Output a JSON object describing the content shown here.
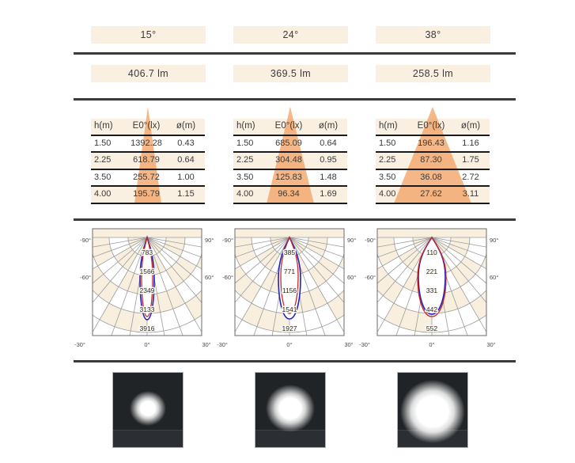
{
  "colors": {
    "box_beige": "#faf0e2",
    "cone_orange": "#f2a365",
    "rule_dark": "#3b3b3b",
    "text": "#3a3a3a"
  },
  "polar_shared": {
    "angle_labels": [
      "-90°",
      "90°",
      "-60°",
      "60°",
      "-30°",
      "0°",
      "30°"
    ],
    "grid_color": "#9b9b9b",
    "beige": "#f9efdf",
    "blue": "#2323b8",
    "red": "#cc2626"
  },
  "columns": [
    {
      "angle_label": "15°",
      "lumen_label": "406.7 lm",
      "table": {
        "headers": [
          "h(m)",
          "E0°(lx)",
          "ø(m)"
        ],
        "rows": [
          [
            "1.50",
            "1392.28",
            "0.43"
          ],
          [
            "2.25",
            "618.79",
            "0.64"
          ],
          [
            "3.50",
            "255.72",
            "1.00"
          ],
          [
            "4.00",
            "195.79",
            "1.15"
          ]
        ]
      },
      "polar": {
        "ring_labels": [
          "783",
          "1566",
          "2349",
          "3133",
          "3916"
        ],
        "lobe": {
          "blue_halfwidth": 9,
          "blue_length": 104,
          "red_halfwidth": 7,
          "red_length": 100
        }
      }
    },
    {
      "angle_label": "24°",
      "lumen_label": "369.5 lm",
      "table": {
        "headers": [
          "h(m)",
          "E0°(lx)",
          "ø(m)"
        ],
        "rows": [
          [
            "1.50",
            "685.09",
            "0.64"
          ],
          [
            "2.25",
            "304.48",
            "0.95"
          ],
          [
            "3.50",
            "125.83",
            "1.48"
          ],
          [
            "4.00",
            "96.34",
            "1.69"
          ]
        ]
      },
      "polar": {
        "ring_labels": [
          "385",
          "771",
          "1156",
          "1541",
          "1927"
        ],
        "lobe": {
          "blue_halfwidth": 14,
          "blue_length": 103,
          "red_halfwidth": 11,
          "red_length": 96
        }
      }
    },
    {
      "angle_label": "38°",
      "lumen_label": "258.5 lm",
      "table": {
        "headers": [
          "h(m)",
          "E0°(lx)",
          "ø(m)"
        ],
        "rows": [
          [
            "1.50",
            "196.43",
            "1.16"
          ],
          [
            "2.25",
            "87.30",
            "1.75"
          ],
          [
            "3.50",
            "36.08",
            "2.72"
          ],
          [
            "4.00",
            "27.62",
            "3.11"
          ]
        ]
      },
      "polar": {
        "ring_labels": [
          "110",
          "221",
          "331",
          "442",
          "552"
        ],
        "lobe": {
          "blue_halfwidth": 17,
          "blue_length": 97,
          "red_halfwidth": 18,
          "red_length": 100
        }
      }
    }
  ]
}
